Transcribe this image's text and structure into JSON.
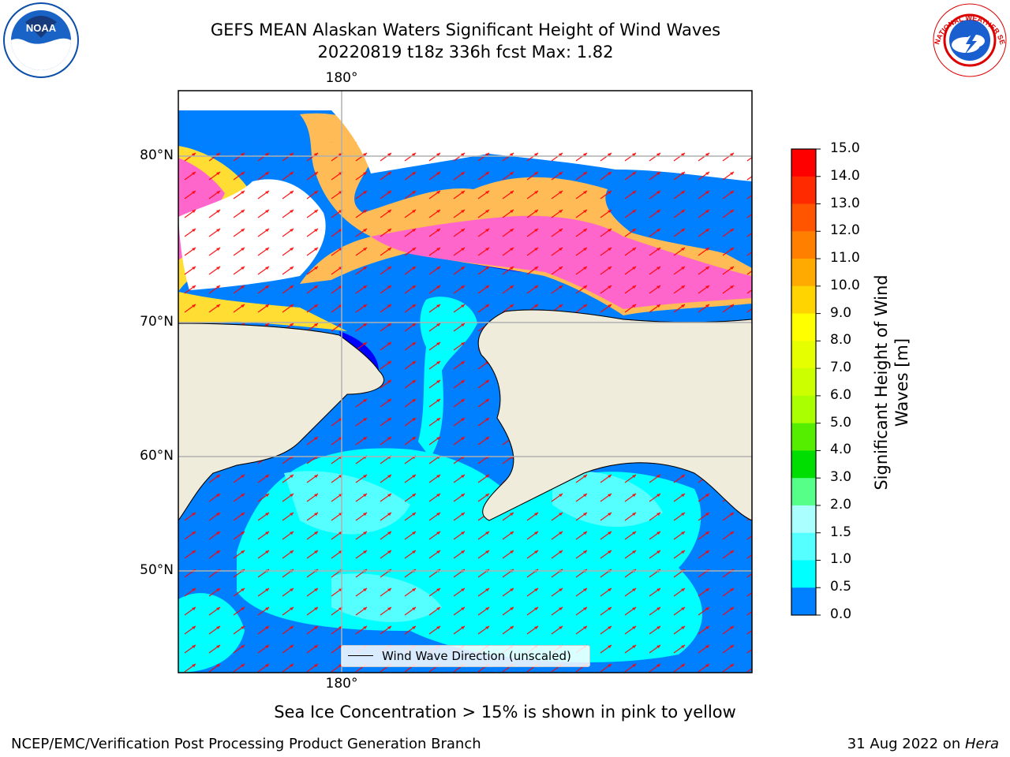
{
  "title_line1": "GEFS MEAN Alaskan Waters Significant Height of Wind Waves",
  "title_line2": "20220819 t18z 336h fcst   Max: 1.82",
  "lon_label": "180°",
  "lat_labels": [
    "80°N",
    "70°N",
    "60°N",
    "50°N"
  ],
  "legend_label": "Wind Wave Direction (unscaled)",
  "colorbar": {
    "title_line1": "Significant Height of Wind",
    "title_line2": "Waves [m]",
    "ticks": [
      "15.0",
      "14.0",
      "13.0",
      "12.0",
      "11.0",
      "10.0",
      "9.0",
      "8.0",
      "7.0",
      "6.0",
      "5.0",
      "4.0",
      "3.0",
      "2.0",
      "1.5",
      "1.0",
      "0.5",
      "0.0"
    ],
    "colors": [
      "#ff0000",
      "#ff2a00",
      "#ff5500",
      "#ff8000",
      "#ffaa00",
      "#ffd400",
      "#ffff00",
      "#e6ff00",
      "#ccff00",
      "#aaff00",
      "#55ee00",
      "#00dd00",
      "#55ff88",
      "#aaffff",
      "#55ffff",
      "#00ffff",
      "#0080ff",
      "#0000ff"
    ]
  },
  "footnote": "Sea Ice Concentration > 15% is shown in pink to yellow",
  "credit": "NCEP/EMC/Verification Post Processing Product Generation Branch",
  "date_text": "31 Aug 2022 on ",
  "date_machine": "Hera",
  "logos": {
    "left": "NOAA",
    "right": "NATIONAL WEATHER SERVICE"
  },
  "map_colors": {
    "land": "#efecdc",
    "deep_blue": "#0080ff",
    "cyan": "#00ffff",
    "light_cyan": "#55ffff",
    "dark_blue": "#0000ff",
    "ice_pink": "#ff66cc",
    "ice_orange": "#ffbb55",
    "ice_yellow": "#ffdd33",
    "arrow": "#ff0000"
  }
}
